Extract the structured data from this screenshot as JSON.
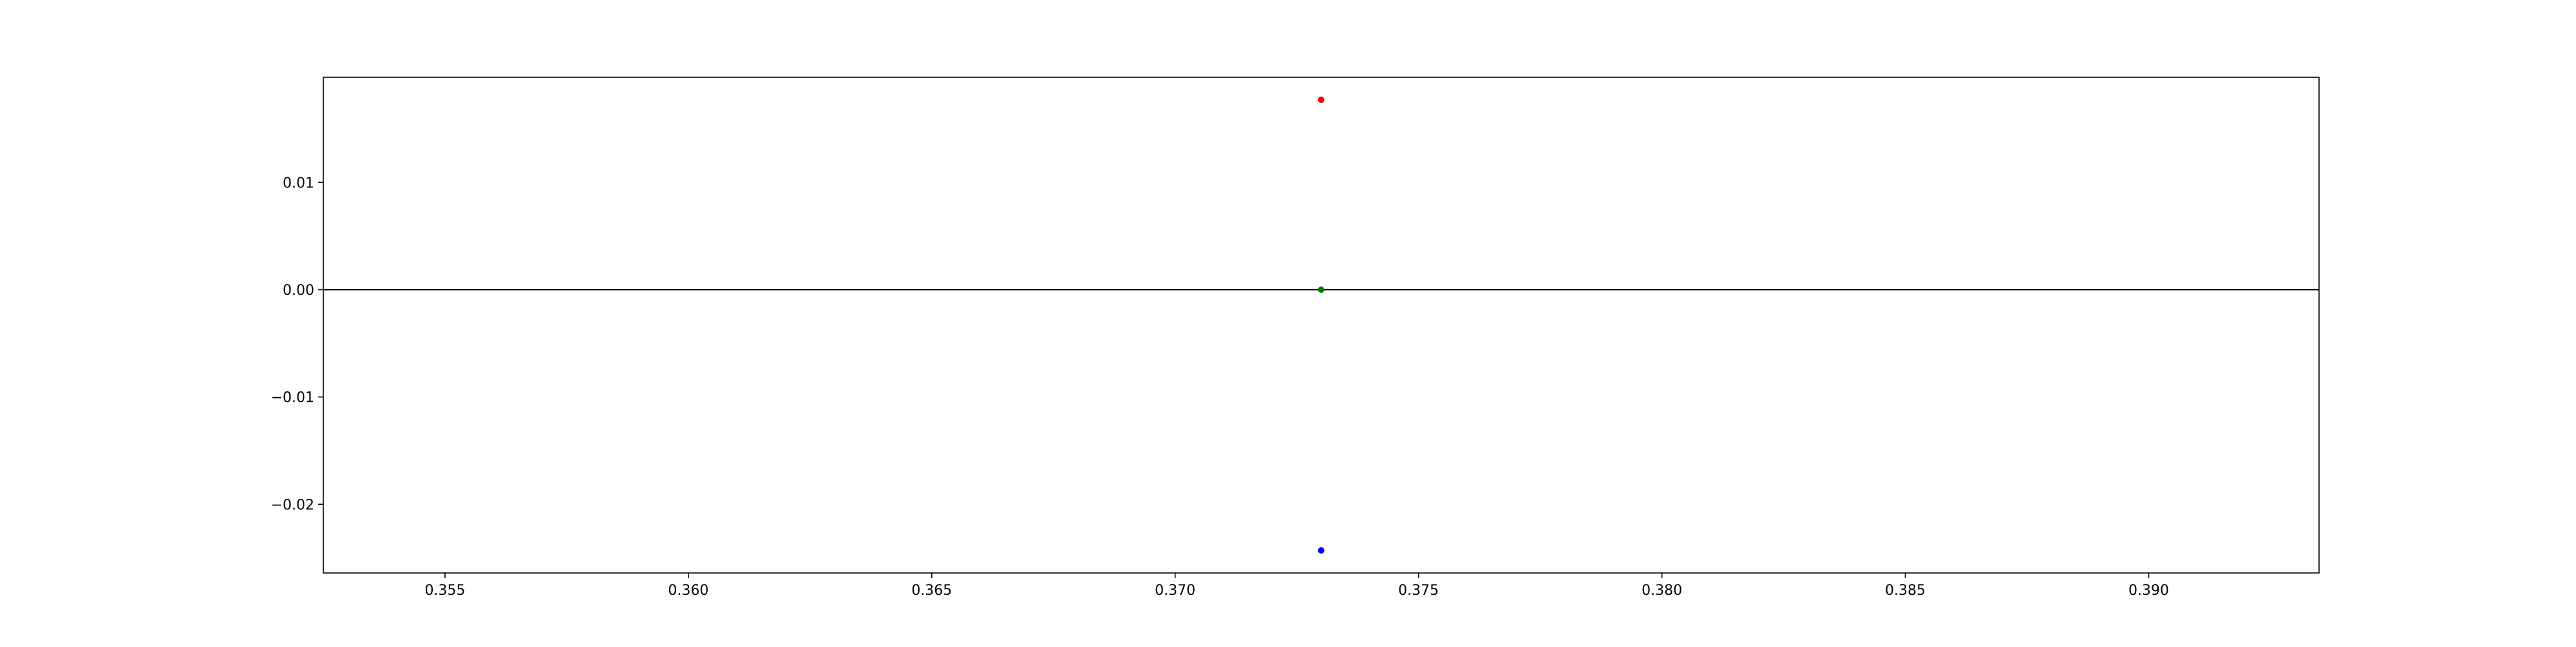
{
  "chart_data": {
    "type": "scatter",
    "title": "",
    "xlabel": "",
    "ylabel": "",
    "xlim": [
      0.3525,
      0.3935
    ],
    "ylim": [
      -0.0264,
      0.0198
    ],
    "grid": false,
    "x_ticks": [
      {
        "value": 0.355,
        "label": "0.355"
      },
      {
        "value": 0.36,
        "label": "0.360"
      },
      {
        "value": 0.365,
        "label": "0.365"
      },
      {
        "value": 0.37,
        "label": "0.370"
      },
      {
        "value": 0.375,
        "label": "0.375"
      },
      {
        "value": 0.38,
        "label": "0.380"
      },
      {
        "value": 0.385,
        "label": "0.385"
      },
      {
        "value": 0.39,
        "label": "0.390"
      }
    ],
    "y_ticks": [
      {
        "value": 0.01,
        "label": "0.01"
      },
      {
        "value": 0.0,
        "label": "0.00"
      },
      {
        "value": -0.01,
        "label": "−0.01"
      },
      {
        "value": -0.02,
        "label": "−0.02"
      }
    ],
    "reference_lines": [
      {
        "orientation": "horizontal",
        "y": 0.0,
        "color": "#000000"
      }
    ],
    "points": [
      {
        "x": 0.373,
        "y": 0.0177,
        "color": "#ff0000"
      },
      {
        "x": 0.373,
        "y": 0.0,
        "color": "#008000"
      },
      {
        "x": 0.373,
        "y": -0.0243,
        "color": "#0000ff"
      }
    ]
  }
}
